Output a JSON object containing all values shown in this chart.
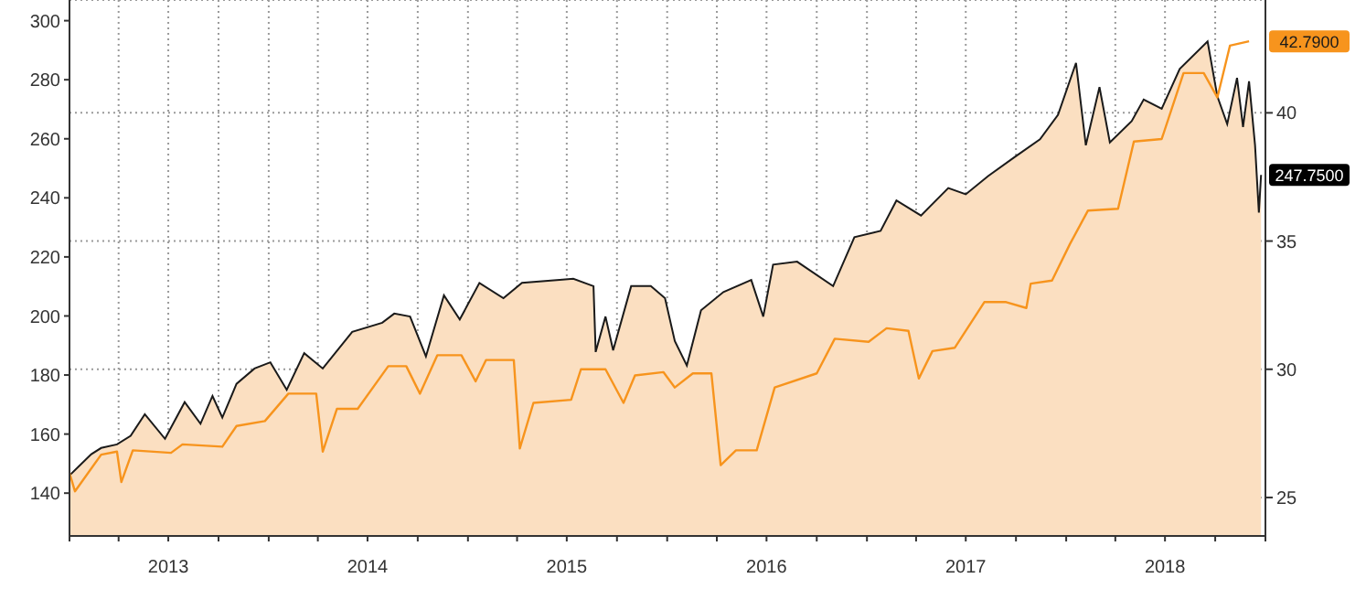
{
  "chart_data": {
    "type": "area",
    "xlim": [
      "2013-01-01",
      "2019-01-01"
    ],
    "xticks": [
      {
        "value": "2013-01-01",
        "label": null
      },
      {
        "value": "2013-04-01",
        "label": null
      },
      {
        "value": "2013-07-01",
        "label": "2013"
      },
      {
        "value": "2013-10-01",
        "label": null
      },
      {
        "value": "2014-01-01",
        "label": null
      },
      {
        "value": "2014-04-01",
        "label": null
      },
      {
        "value": "2014-07-01",
        "label": "2014"
      },
      {
        "value": "2014-10-01",
        "label": null
      },
      {
        "value": "2015-01-01",
        "label": null
      },
      {
        "value": "2015-04-01",
        "label": null
      },
      {
        "value": "2015-07-01",
        "label": "2015"
      },
      {
        "value": "2015-10-01",
        "label": null
      },
      {
        "value": "2016-01-01",
        "label": null
      },
      {
        "value": "2016-04-01",
        "label": null
      },
      {
        "value": "2016-07-01",
        "label": "2016"
      },
      {
        "value": "2016-10-01",
        "label": null
      },
      {
        "value": "2017-01-01",
        "label": null
      },
      {
        "value": "2017-04-01",
        "label": null
      },
      {
        "value": "2017-07-01",
        "label": "2017"
      },
      {
        "value": "2017-10-01",
        "label": null
      },
      {
        "value": "2018-01-01",
        "label": null
      },
      {
        "value": "2018-04-01",
        "label": null
      },
      {
        "value": "2018-07-01",
        "label": "2018"
      },
      {
        "value": "2018-10-01",
        "label": null
      },
      {
        "value": "2019-01-01",
        "label": null
      }
    ],
    "ylim": [
      125.5,
      307
    ],
    "yticks": [
      140,
      160,
      180,
      200,
      220,
      240,
      260,
      280,
      300
    ],
    "y2lim": [
      23.5,
      44.4
    ],
    "y2ticks": [
      25,
      30,
      35,
      40
    ],
    "grid": true,
    "legend": false,
    "series": [
      {
        "color": "#fbdfc1",
        "x": [
          "2013-01-01",
          "2013-02-10",
          "2013-02-28",
          "2013-03-29",
          "2013-04-23",
          "2013-05-19",
          "2013-06-25",
          "2013-07-31",
          "2013-08-29",
          "2013-09-20",
          "2013-10-08",
          "2013-11-03",
          "2013-12-06",
          "2014-01-04",
          "2014-02-03",
          "2014-03-07",
          "2014-04-10",
          "2014-06-03",
          "2014-07-28",
          "2014-08-19",
          "2014-09-17",
          "2014-10-16",
          "2014-11-18",
          "2014-12-17",
          "2015-01-22",
          "2015-03-07",
          "2015-04-10",
          "2015-06-18",
          "2015-07-13",
          "2015-08-19",
          "2015-08-23",
          "2015-09-10",
          "2015-09-24",
          "2015-10-27",
          "2015-12-02",
          "2015-12-28",
          "2016-01-15",
          "2016-02-06",
          "2016-03-03",
          "2016-04-13",
          "2016-06-03",
          "2016-06-25",
          "2016-07-13",
          "2016-08-26",
          "2016-10-31",
          "2016-12-09",
          "2017-01-26",
          "2017-02-24",
          "2017-04-10",
          "2017-05-30",
          "2017-07-01",
          "2017-08-11",
          "2017-09-27",
          "2017-11-14",
          "2017-12-17",
          "2018-01-19",
          "2018-02-06",
          "2018-03-03",
          "2018-03-22",
          "2018-05-01",
          "2018-05-23",
          "2018-06-25",
          "2018-07-28",
          "2018-09-17",
          "2018-10-05",
          "2018-10-23",
          "2018-11-10",
          "2018-11-21",
          "2018-12-02",
          "2018-12-13",
          "2018-12-20",
          "2018-12-24"
        ],
        "values": [
          146.0,
          153.2,
          155.3,
          156.5,
          159.4,
          166.7,
          158.4,
          170.8,
          163.5,
          172.9,
          165.6,
          177.0,
          182.2,
          184.3,
          175.0,
          187.4,
          182.2,
          194.6,
          197.7,
          200.8,
          199.8,
          186.3,
          207.0,
          198.8,
          211.2,
          206.0,
          211.2,
          212.2,
          212.6,
          210.1,
          187.8,
          199.8,
          188.4,
          210.1,
          210.1,
          206.0,
          191.5,
          183.2,
          201.9,
          208.1,
          212.2,
          199.8,
          217.4,
          218.4,
          210.1,
          226.7,
          228.8,
          239.1,
          234.0,
          243.3,
          241.2,
          247.4,
          253.6,
          259.8,
          268.1,
          285.7,
          257.8,
          277.5,
          258.8,
          266.0,
          273.3,
          270.2,
          283.7,
          293.0,
          274.3,
          265.0,
          280.6,
          264.0,
          279.5,
          257.8,
          235.0,
          247.75
        ],
        "value_labels": [
          null,
          null,
          null,
          null,
          null,
          null,
          null,
          null,
          null,
          null,
          null,
          null,
          null,
          null,
          null,
          null,
          null,
          null,
          null,
          null,
          null,
          null,
          null,
          null,
          null,
          null,
          null,
          null,
          null,
          null,
          null,
          null,
          null,
          null,
          null,
          null,
          null,
          null,
          null,
          null,
          null,
          null,
          null,
          null,
          null,
          null,
          null,
          null,
          null,
          null,
          null,
          null,
          null,
          null,
          null,
          null,
          null,
          null,
          null,
          null,
          null,
          null,
          null,
          null,
          null,
          null,
          null,
          null,
          null,
          null,
          null,
          "247.7500"
        ]
      },
      {
        "type": "line",
        "axis": "y2",
        "color": "#f7941d",
        "x": [
          "2013-01-01",
          "2013-01-11",
          "2013-02-28",
          "2013-03-29",
          "2013-04-06",
          "2013-04-27",
          "2013-07-06",
          "2013-07-27",
          "2013-10-08",
          "2013-11-03",
          "2013-12-25",
          "2014-02-06",
          "2014-03-29",
          "2014-04-10",
          "2014-05-06",
          "2014-06-13",
          "2014-08-08",
          "2014-09-10",
          "2014-10-05",
          "2014-11-06",
          "2014-12-20",
          "2015-01-15",
          "2015-02-03",
          "2015-03-26",
          "2015-04-06",
          "2015-05-01",
          "2015-07-09",
          "2015-07-27",
          "2015-09-10",
          "2015-10-13",
          "2015-11-03",
          "2015-12-25",
          "2016-01-15",
          "2016-02-17",
          "2016-03-22",
          "2016-04-08",
          "2016-05-06",
          "2016-06-13",
          "2016-07-16",
          "2016-10-01",
          "2016-11-03",
          "2017-01-04",
          "2017-02-06",
          "2017-03-18",
          "2017-04-06",
          "2017-05-01",
          "2017-06-11",
          "2017-08-04",
          "2017-09-13",
          "2017-10-20",
          "2017-10-28",
          "2017-12-06",
          "2018-01-08",
          "2018-02-10",
          "2018-04-06",
          "2018-05-05",
          "2018-06-25",
          "2018-08-04",
          "2018-09-10",
          "2018-10-05",
          "2018-10-28",
          "2018-12-02"
        ],
        "values": [
          25.96,
          25.24,
          26.67,
          26.79,
          25.6,
          26.84,
          26.74,
          27.07,
          26.98,
          27.79,
          27.98,
          29.05,
          29.05,
          26.79,
          28.46,
          28.46,
          30.12,
          30.12,
          29.05,
          30.55,
          30.55,
          29.53,
          30.36,
          30.36,
          26.91,
          28.69,
          28.81,
          30.0,
          30.0,
          28.69,
          29.76,
          29.89,
          29.29,
          29.84,
          29.84,
          26.26,
          26.84,
          26.84,
          29.29,
          29.84,
          31.19,
          31.07,
          31.6,
          31.5,
          29.64,
          30.71,
          30.84,
          32.62,
          32.62,
          32.39,
          33.34,
          33.46,
          34.89,
          36.19,
          36.26,
          38.88,
          38.98,
          41.55,
          41.55,
          40.6,
          42.62,
          42.79
        ],
        "value_labels": [
          null,
          null,
          null,
          null,
          null,
          null,
          null,
          null,
          null,
          null,
          null,
          null,
          null,
          null,
          null,
          null,
          null,
          null,
          null,
          null,
          null,
          null,
          null,
          null,
          null,
          null,
          null,
          null,
          null,
          null,
          null,
          null,
          null,
          null,
          null,
          null,
          null,
          null,
          null,
          null,
          null,
          null,
          null,
          null,
          null,
          null,
          null,
          null,
          null,
          null,
          null,
          null,
          null,
          null,
          null,
          null,
          null,
          null,
          null,
          null,
          null,
          "42.7900"
        ]
      }
    ]
  }
}
